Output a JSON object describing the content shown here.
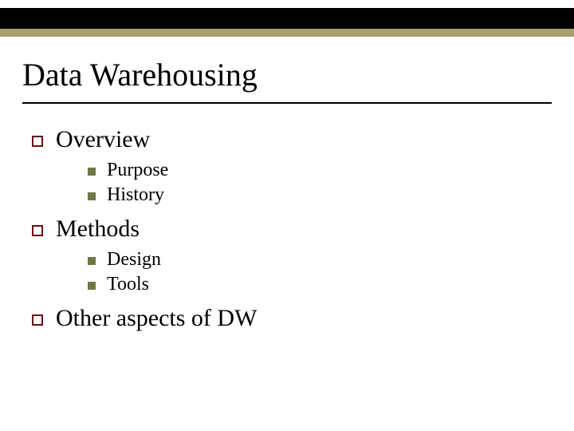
{
  "colors": {
    "top_band": "#000000",
    "accent_band": "#a8a070",
    "lvl1_bullet_border": "#6b0f0f",
    "lvl2_bullet_fill": "#707848",
    "title_rule": "#000000",
    "background": "#ffffff",
    "text": "#000000"
  },
  "typography": {
    "family": "Times New Roman",
    "title_size_pt": 40,
    "lvl1_size_pt": 30,
    "lvl2_size_pt": 24
  },
  "title": "Data Warehousing",
  "outline": [
    {
      "label": "Overview",
      "children": [
        {
          "label": "Purpose"
        },
        {
          "label": "History"
        }
      ]
    },
    {
      "label": "Methods",
      "children": [
        {
          "label": "Design"
        },
        {
          "label": "Tools"
        }
      ]
    },
    {
      "label": "Other aspects of DW",
      "children": []
    }
  ]
}
